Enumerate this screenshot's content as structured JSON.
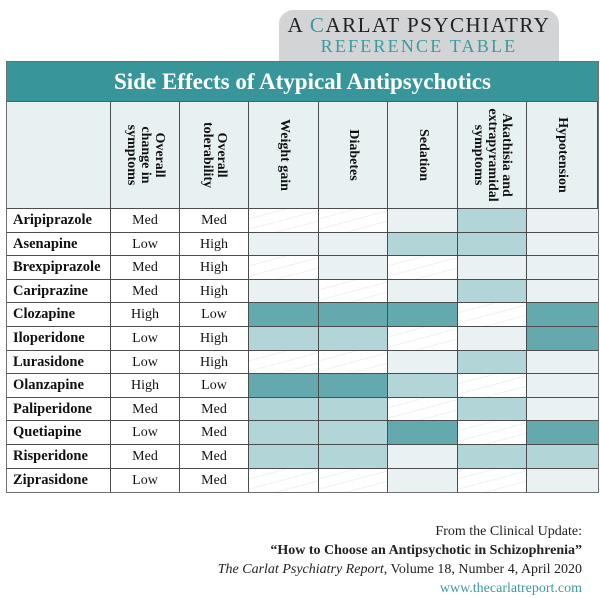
{
  "brand": {
    "line1_initial": "A ",
    "line1_c": "C",
    "line1_rest": "ARLAT PSYCHIATRY",
    "line2": "REFERENCE TABLE"
  },
  "table": {
    "title": "Side Effects of Atypical Antipsychotics",
    "columns": [
      {
        "label": "",
        "lines": []
      },
      {
        "label": "Overall change in symptoms",
        "lines": [
          "Overall",
          "change in",
          "symptoms"
        ]
      },
      {
        "label": "Overall tolerability",
        "lines": [
          "Overall",
          "tolerability"
        ]
      },
      {
        "label": "Weight gain",
        "lines": [
          "Weight gain"
        ]
      },
      {
        "label": "Diabetes",
        "lines": [
          "Diabetes"
        ]
      },
      {
        "label": "Sedation",
        "lines": [
          "Sedation"
        ]
      },
      {
        "label": "Akathisia and extrapyramidal symptoms",
        "lines": [
          "Akathisia and",
          "extrapyramidal",
          "symptoms"
        ]
      },
      {
        "label": "Hypotension",
        "lines": [
          "Hypotension"
        ]
      }
    ],
    "shade_legend": {
      "0": "none",
      "1": "low",
      "2": "moderate",
      "3": "high"
    },
    "shade_colors": {
      "0": "#ffffff",
      "1": "#e9f1f2",
      "2": "#b2d5d7",
      "3": "#63a9ad"
    },
    "rows": [
      {
        "drug": "Aripiprazole",
        "change": "Med",
        "tolerability": "Med",
        "shades": [
          0,
          0,
          1,
          2,
          1
        ]
      },
      {
        "drug": "Asenapine",
        "change": "Low",
        "tolerability": "High",
        "shades": [
          1,
          1,
          2,
          2,
          1
        ]
      },
      {
        "drug": "Brexpiprazole",
        "change": "Med",
        "tolerability": "High",
        "shades": [
          0,
          1,
          0,
          1,
          1
        ]
      },
      {
        "drug": "Cariprazine",
        "change": "Med",
        "tolerability": "High",
        "shades": [
          1,
          0,
          1,
          2,
          1
        ]
      },
      {
        "drug": "Clozapine",
        "change": "High",
        "tolerability": "Low",
        "shades": [
          3,
          3,
          3,
          0,
          3
        ]
      },
      {
        "drug": "Iloperidone",
        "change": "Low",
        "tolerability": "High",
        "shades": [
          2,
          2,
          0,
          1,
          3
        ]
      },
      {
        "drug": "Lurasidone",
        "change": "Low",
        "tolerability": "High",
        "shades": [
          0,
          0,
          1,
          2,
          1
        ]
      },
      {
        "drug": "Olanzapine",
        "change": "High",
        "tolerability": "Low",
        "shades": [
          3,
          3,
          2,
          0,
          1
        ]
      },
      {
        "drug": "Paliperidone",
        "change": "Med",
        "tolerability": "Med",
        "shades": [
          2,
          2,
          0,
          2,
          1
        ]
      },
      {
        "drug": "Quetiapine",
        "change": "Low",
        "tolerability": "Med",
        "shades": [
          2,
          2,
          3,
          0,
          3
        ]
      },
      {
        "drug": "Risperidone",
        "change": "Med",
        "tolerability": "Med",
        "shades": [
          2,
          2,
          1,
          2,
          2
        ]
      },
      {
        "drug": "Ziprasidone",
        "change": "Low",
        "tolerability": "Med",
        "shades": [
          0,
          0,
          1,
          0,
          1
        ]
      }
    ]
  },
  "footer": {
    "line1": "From the Clinical Update:",
    "headline": "“How to Choose an Antipsychotic in Schizophrenia”",
    "journal": "The Carlat Psychiatry Report",
    "citation": ", Volume 18, Number 4, April 2020",
    "url": "www.thecarlatreport.com"
  },
  "colors": {
    "accent": "#38969a",
    "brand_tab": "#d3d4d5",
    "header_bg": "#e8f1f2"
  }
}
